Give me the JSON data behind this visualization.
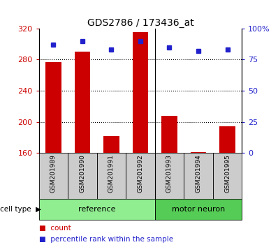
{
  "title": "GDS2786 / 173436_at",
  "samples": [
    "GSM201989",
    "GSM201990",
    "GSM201991",
    "GSM201992",
    "GSM201993",
    "GSM201994",
    "GSM201995"
  ],
  "counts": [
    277,
    290,
    182,
    315,
    208,
    161,
    194
  ],
  "percentile_ranks": [
    87,
    90,
    83,
    90,
    85,
    82,
    83
  ],
  "reference_indices": [
    0,
    1,
    2,
    3
  ],
  "motor_neuron_indices": [
    4,
    5,
    6
  ],
  "ylim_left": [
    160,
    320
  ],
  "ylim_right": [
    0,
    100
  ],
  "yticks_left": [
    160,
    200,
    240,
    280,
    320
  ],
  "yticks_right": [
    0,
    25,
    50,
    75,
    100
  ],
  "ytick_right_labels": [
    "0",
    "25",
    "50",
    "75",
    "100%"
  ],
  "bar_color": "#cc0000",
  "dot_color": "#2222cc",
  "ref_bg_color": "#90ee90",
  "motor_bg_color": "#55cc55",
  "sample_bg_color": "#cccccc",
  "left_tick_color": "#cc0000",
  "right_tick_color": "#2222cc",
  "bar_width": 0.55,
  "baseline": 160,
  "grid_dotted_at": [
    200,
    240,
    280
  ],
  "n_ref": 4,
  "n_motor": 3
}
